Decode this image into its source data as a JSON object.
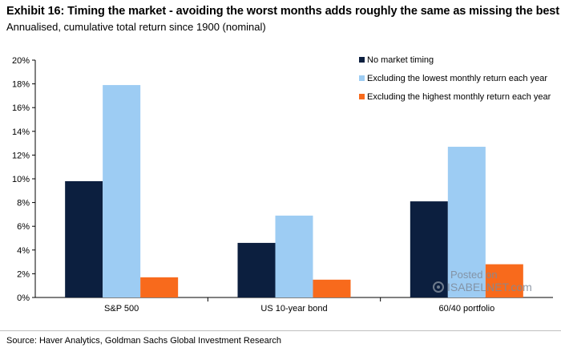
{
  "header": {
    "title": "Exhibit 16: Timing the market - avoiding the worst months adds roughly the same as missing the best",
    "subtitle": "Annualised, cumulative total return since 1900 (nominal)"
  },
  "footer": {
    "source": "Source: Haver Analytics, Goldman Sachs Global Investment Research"
  },
  "watermark": {
    "posted": "Posted on",
    "site": "ISABELNET.com"
  },
  "chart_data": {
    "type": "bar",
    "categories": [
      "S&P 500",
      "US 10-year bond",
      "60/40 portfolio"
    ],
    "series": [
      {
        "name": "No market timing",
        "color": "#0c1f3f",
        "values": [
          9.8,
          4.6,
          8.1
        ]
      },
      {
        "name": "Excluding the lowest monthly return each year",
        "color": "#9dccf3",
        "values": [
          17.9,
          6.9,
          12.7
        ]
      },
      {
        "name": "Excluding the highest monthly return each year",
        "color": "#f86a1c",
        "values": [
          1.7,
          1.5,
          2.8
        ]
      }
    ],
    "ylim": [
      0,
      20
    ],
    "yticks": [
      "0%",
      "2%",
      "4%",
      "6%",
      "8%",
      "10%",
      "12%",
      "14%",
      "16%",
      "18%",
      "20%"
    ],
    "grid": false,
    "legend_position": "top-right"
  }
}
